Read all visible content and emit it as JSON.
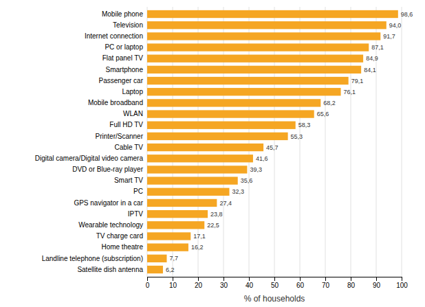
{
  "chart_data": {
    "type": "bar",
    "orientation": "horizontal",
    "categories": [
      "Satellite dish antenna",
      "Landline telephone (subscription)",
      "Home theatre",
      "TV charge card",
      "Wearable technology",
      "IPTV",
      "GPS navigator in a car",
      "PC",
      "Smart TV",
      "DVD or Blue-ray player",
      "Digital camera/Digital video camera",
      "Cable TV",
      "Printer/Scanner",
      "Full HD TV",
      "WLAN",
      "Mobile broadband",
      "Laptop",
      "Passenger car",
      "Smartphone",
      "Flat panel TV",
      "PC or laptop",
      "Internet connection",
      "Television",
      "Mobile phone"
    ],
    "values": [
      6.2,
      7.7,
      16.2,
      17.1,
      22.5,
      23.8,
      27.4,
      32.3,
      35.6,
      39.3,
      41.6,
      45.7,
      55.3,
      58.3,
      65.6,
      68.2,
      76.1,
      79.1,
      84.1,
      84.9,
      87.1,
      91.7,
      94.0,
      98.6
    ],
    "value_labels": [
      "6,2",
      "7,7",
      "16,2",
      "17,1",
      "22,5",
      "23,8",
      "27,4",
      "32,3",
      "35,6",
      "39,3",
      "41,6",
      "45,7",
      "55,3",
      "58,3",
      "65,6",
      "68,2",
      "76,1",
      "79,1",
      "84,1",
      "84,9",
      "87,1",
      "91,7",
      "94,0",
      "98,6"
    ],
    "data_labels": true,
    "color": "#F5A623",
    "xlabel": "% of households",
    "xlim": [
      0,
      100
    ],
    "xticks": [
      0,
      10,
      20,
      30,
      40,
      50,
      60,
      70,
      80,
      90,
      100
    ],
    "grid": true
  }
}
